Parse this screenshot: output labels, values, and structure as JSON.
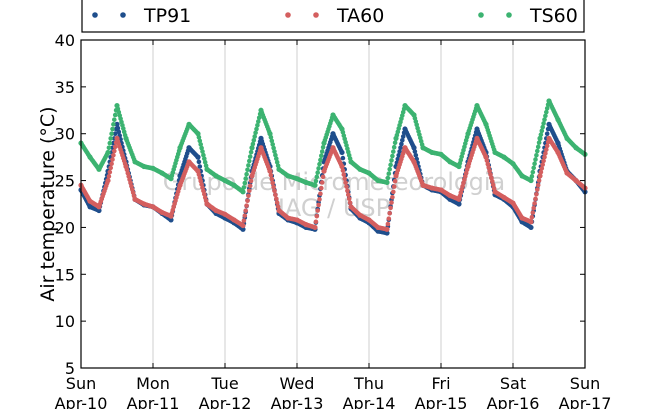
{
  "chart_data": {
    "type": "scatter",
    "ylabel": "Air temperature (°C)",
    "ylim": [
      5,
      40
    ],
    "yticks": [
      5,
      10,
      15,
      20,
      25,
      30,
      35,
      40
    ],
    "xlim": [
      "Apr-10",
      "Apr-17"
    ],
    "xticks": [
      {
        "day": "Sun",
        "date": "Apr-10"
      },
      {
        "day": "Mon",
        "date": "Apr-11"
      },
      {
        "day": "Tue",
        "date": "Apr-12"
      },
      {
        "day": "Wed",
        "date": "Apr-13"
      },
      {
        "day": "Thu",
        "date": "Apr-14"
      },
      {
        "day": "Fri",
        "date": "Apr-15"
      },
      {
        "day": "Sat",
        "date": "Apr-16"
      },
      {
        "day": "Sun",
        "date": "Apr-17"
      }
    ],
    "grid": "vertical",
    "legend_position": "top",
    "watermark": [
      "Grupo de Micrometeorologia",
      "IAG / USP"
    ],
    "colors": {
      "TP91": "#1f4e8c",
      "TA60": "#d45f5f",
      "TS60": "#3cb371"
    },
    "series": [
      {
        "name": "TP91",
        "x": [
          0.0,
          0.125,
          0.25,
          0.375,
          0.5,
          0.625,
          0.75,
          0.875,
          1.0,
          1.125,
          1.25,
          1.375,
          1.5,
          1.625,
          1.75,
          1.875,
          2.0,
          2.125,
          2.25,
          2.375,
          2.5,
          2.625,
          2.75,
          2.875,
          3.0,
          3.125,
          3.25,
          3.375,
          3.5,
          3.625,
          3.75,
          3.875,
          4.0,
          4.125,
          4.25,
          4.375,
          4.5,
          4.625,
          4.75,
          4.875,
          5.0,
          5.125,
          5.25,
          5.375,
          5.5,
          5.625,
          5.75,
          5.875,
          6.0,
          6.125,
          6.25,
          6.375,
          6.5,
          6.625,
          6.75,
          6.875,
          7.0
        ],
        "y": [
          24.0,
          22.2,
          21.8,
          26.0,
          31.0,
          27.0,
          23.0,
          22.4,
          22.2,
          21.5,
          20.8,
          25.5,
          28.5,
          27.5,
          22.5,
          21.5,
          21.0,
          20.5,
          19.8,
          26.0,
          29.5,
          26.5,
          21.5,
          20.8,
          20.5,
          20.0,
          19.8,
          27.0,
          30.0,
          28.0,
          22.0,
          21.0,
          20.5,
          19.6,
          19.4,
          26.5,
          30.5,
          28.5,
          24.5,
          24.0,
          23.8,
          23.0,
          22.5,
          27.0,
          30.5,
          28.0,
          23.5,
          23.0,
          22.2,
          20.6,
          20.0,
          26.0,
          31.0,
          29.0,
          26.0,
          25.0,
          23.8
        ]
      },
      {
        "name": "TA60",
        "x": [
          0.0,
          0.125,
          0.25,
          0.375,
          0.5,
          0.625,
          0.75,
          0.875,
          1.0,
          1.125,
          1.25,
          1.375,
          1.5,
          1.625,
          1.75,
          1.875,
          2.0,
          2.125,
          2.25,
          2.375,
          2.5,
          2.625,
          2.75,
          2.875,
          3.0,
          3.125,
          3.25,
          3.375,
          3.5,
          3.625,
          3.75,
          3.875,
          4.0,
          4.125,
          4.25,
          4.375,
          4.5,
          4.625,
          4.75,
          4.875,
          5.0,
          5.125,
          5.25,
          5.375,
          5.5,
          5.625,
          5.75,
          5.875,
          6.0,
          6.125,
          6.25,
          6.375,
          6.5,
          6.625,
          6.75,
          6.875,
          7.0
        ],
        "y": [
          24.5,
          22.8,
          22.2,
          25.0,
          29.5,
          26.5,
          23.0,
          22.5,
          22.2,
          21.6,
          21.2,
          24.5,
          27.0,
          26.0,
          22.5,
          21.8,
          21.4,
          20.8,
          20.2,
          25.5,
          28.5,
          26.0,
          21.8,
          21.0,
          20.8,
          20.3,
          20.0,
          26.0,
          28.5,
          26.5,
          22.2,
          21.3,
          20.8,
          20.0,
          19.8,
          25.5,
          28.5,
          27.0,
          24.5,
          24.2,
          24.0,
          23.4,
          23.0,
          26.5,
          29.5,
          27.5,
          23.8,
          23.2,
          22.6,
          21.0,
          20.6,
          25.5,
          29.5,
          28.0,
          25.8,
          25.0,
          24.2
        ]
      },
      {
        "name": "TS60",
        "x": [
          0.0,
          0.125,
          0.25,
          0.375,
          0.5,
          0.625,
          0.75,
          0.875,
          1.0,
          1.125,
          1.25,
          1.375,
          1.5,
          1.625,
          1.75,
          1.875,
          2.0,
          2.125,
          2.25,
          2.375,
          2.5,
          2.625,
          2.75,
          2.875,
          3.0,
          3.125,
          3.25,
          3.375,
          3.5,
          3.625,
          3.75,
          3.875,
          4.0,
          4.125,
          4.25,
          4.375,
          4.5,
          4.625,
          4.75,
          4.875,
          5.0,
          5.125,
          5.25,
          5.375,
          5.5,
          5.625,
          5.75,
          5.875,
          6.0,
          6.125,
          6.25,
          6.375,
          6.5,
          6.625,
          6.75,
          6.875,
          7.0
        ],
        "y": [
          29.0,
          27.5,
          26.2,
          28.0,
          33.0,
          29.5,
          27.0,
          26.5,
          26.3,
          25.8,
          25.2,
          28.5,
          31.0,
          30.0,
          26.2,
          25.5,
          25.0,
          24.5,
          23.8,
          28.5,
          32.5,
          30.0,
          26.2,
          25.5,
          25.2,
          24.8,
          24.5,
          29.0,
          32.0,
          30.5,
          27.0,
          26.2,
          25.8,
          25.0,
          24.8,
          29.5,
          33.0,
          32.0,
          28.5,
          28.0,
          27.8,
          27.0,
          26.5,
          30.0,
          33.0,
          31.0,
          28.0,
          27.5,
          26.8,
          25.5,
          25.0,
          29.5,
          33.5,
          31.5,
          29.5,
          28.5,
          27.8
        ]
      }
    ]
  }
}
